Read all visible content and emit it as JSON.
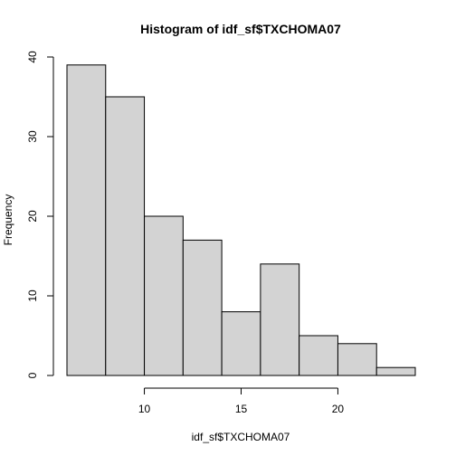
{
  "chart_data": {
    "type": "bar",
    "title": "Histogram of idf_sf$TXCHOMA07",
    "xlabel": "idf_sf$TXCHOMA07",
    "ylabel": "Frequency",
    "bins": [
      {
        "from": 6,
        "to": 8,
        "count": 39
      },
      {
        "from": 8,
        "to": 10,
        "count": 35
      },
      {
        "from": 10,
        "to": 12,
        "count": 20
      },
      {
        "from": 12,
        "to": 14,
        "count": 17
      },
      {
        "from": 14,
        "to": 16,
        "count": 8
      },
      {
        "from": 16,
        "to": 18,
        "count": 14
      },
      {
        "from": 18,
        "to": 20,
        "count": 5
      },
      {
        "from": 20,
        "to": 22,
        "count": 4
      },
      {
        "from": 22,
        "to": 24,
        "count": 1
      }
    ],
    "xlim": [
      6,
      24
    ],
    "ylim": [
      0,
      40
    ],
    "x_ticks": [
      10,
      15,
      20
    ],
    "y_ticks": [
      0,
      10,
      20,
      30,
      40
    ],
    "grid": false,
    "bar_color": "#d3d3d3",
    "edge_color": "#000000"
  }
}
